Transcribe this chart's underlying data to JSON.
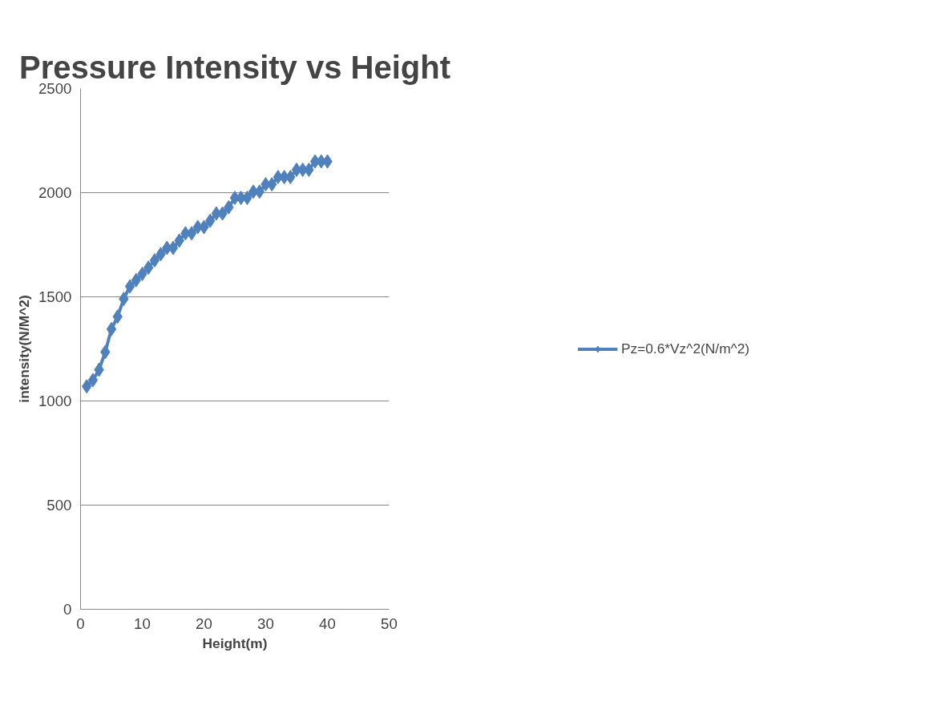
{
  "chart_data": {
    "type": "line",
    "title": "Pressure Intensity vs Height",
    "xlabel": "Height(m)",
    "ylabel": "intensity(N/M^2)",
    "x": [
      1,
      2,
      3,
      4,
      5,
      6,
      7,
      8,
      9,
      10,
      11,
      12,
      13,
      14,
      15,
      16,
      17,
      18,
      19,
      20,
      21,
      22,
      23,
      24,
      25,
      26,
      27,
      28,
      29,
      30,
      31,
      32,
      33,
      34,
      35,
      36,
      37,
      38,
      39,
      40
    ],
    "series": [
      {
        "name": "Pz=0.6*Vz^2(N/m^2)",
        "color": "#4f81bd",
        "values": [
          1070,
          1100,
          1150,
          1235,
          1345,
          1405,
          1490,
          1550,
          1580,
          1610,
          1640,
          1675,
          1705,
          1735,
          1735,
          1770,
          1805,
          1805,
          1835,
          1835,
          1865,
          1900,
          1900,
          1930,
          1975,
          1975,
          1975,
          2005,
          2005,
          2040,
          2040,
          2075,
          2075,
          2075,
          2110,
          2110,
          2110,
          2150,
          2150,
          2150
        ]
      }
    ],
    "xlim": [
      0,
      50
    ],
    "xticks": [
      0,
      10,
      20,
      30,
      40,
      50
    ],
    "ylim": [
      0,
      2500
    ],
    "yticks": [
      0,
      500,
      1000,
      1500,
      2000,
      2500
    ],
    "grid": "y",
    "legend": "right",
    "marker": "diamond",
    "line_style": "solid"
  }
}
